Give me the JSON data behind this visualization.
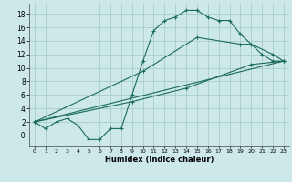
{
  "xlabel": "Humidex (Indice chaleur)",
  "bg_color": "#cce8e8",
  "grid_color": "#aacccc",
  "line_color": "#1a6b5a",
  "xlim": [
    -0.5,
    23.5
  ],
  "ylim": [
    -1.5,
    19.5
  ],
  "xticks": [
    0,
    1,
    2,
    3,
    4,
    5,
    6,
    7,
    8,
    9,
    10,
    11,
    12,
    13,
    14,
    15,
    16,
    17,
    18,
    19,
    20,
    21,
    22,
    23
  ],
  "yticks": [
    0,
    2,
    4,
    6,
    8,
    10,
    12,
    14,
    16,
    18
  ],
  "series1_x": [
    0,
    1,
    2,
    3,
    4,
    5,
    6,
    7,
    8,
    9,
    10,
    11,
    12,
    13,
    14,
    15,
    16,
    17,
    18,
    19,
    20,
    21,
    22,
    23
  ],
  "series1_y": [
    2,
    1,
    2,
    2.5,
    1.5,
    -0.6,
    -0.6,
    1.0,
    1.0,
    6.0,
    11.0,
    15.5,
    17.0,
    17.5,
    18.5,
    18.5,
    17.5,
    17.0,
    17.0,
    15.0,
    13.5,
    12.0,
    11.0,
    11.0
  ],
  "series2_x": [
    0,
    10,
    15,
    19,
    20,
    22,
    23
  ],
  "series2_y": [
    2,
    9.5,
    14.5,
    13.5,
    13.5,
    12,
    11
  ],
  "series3_x": [
    0,
    23
  ],
  "series3_y": [
    2,
    11
  ],
  "series4_x": [
    0,
    9,
    14,
    20,
    23
  ],
  "series4_y": [
    2,
    5,
    7,
    10.5,
    11
  ]
}
